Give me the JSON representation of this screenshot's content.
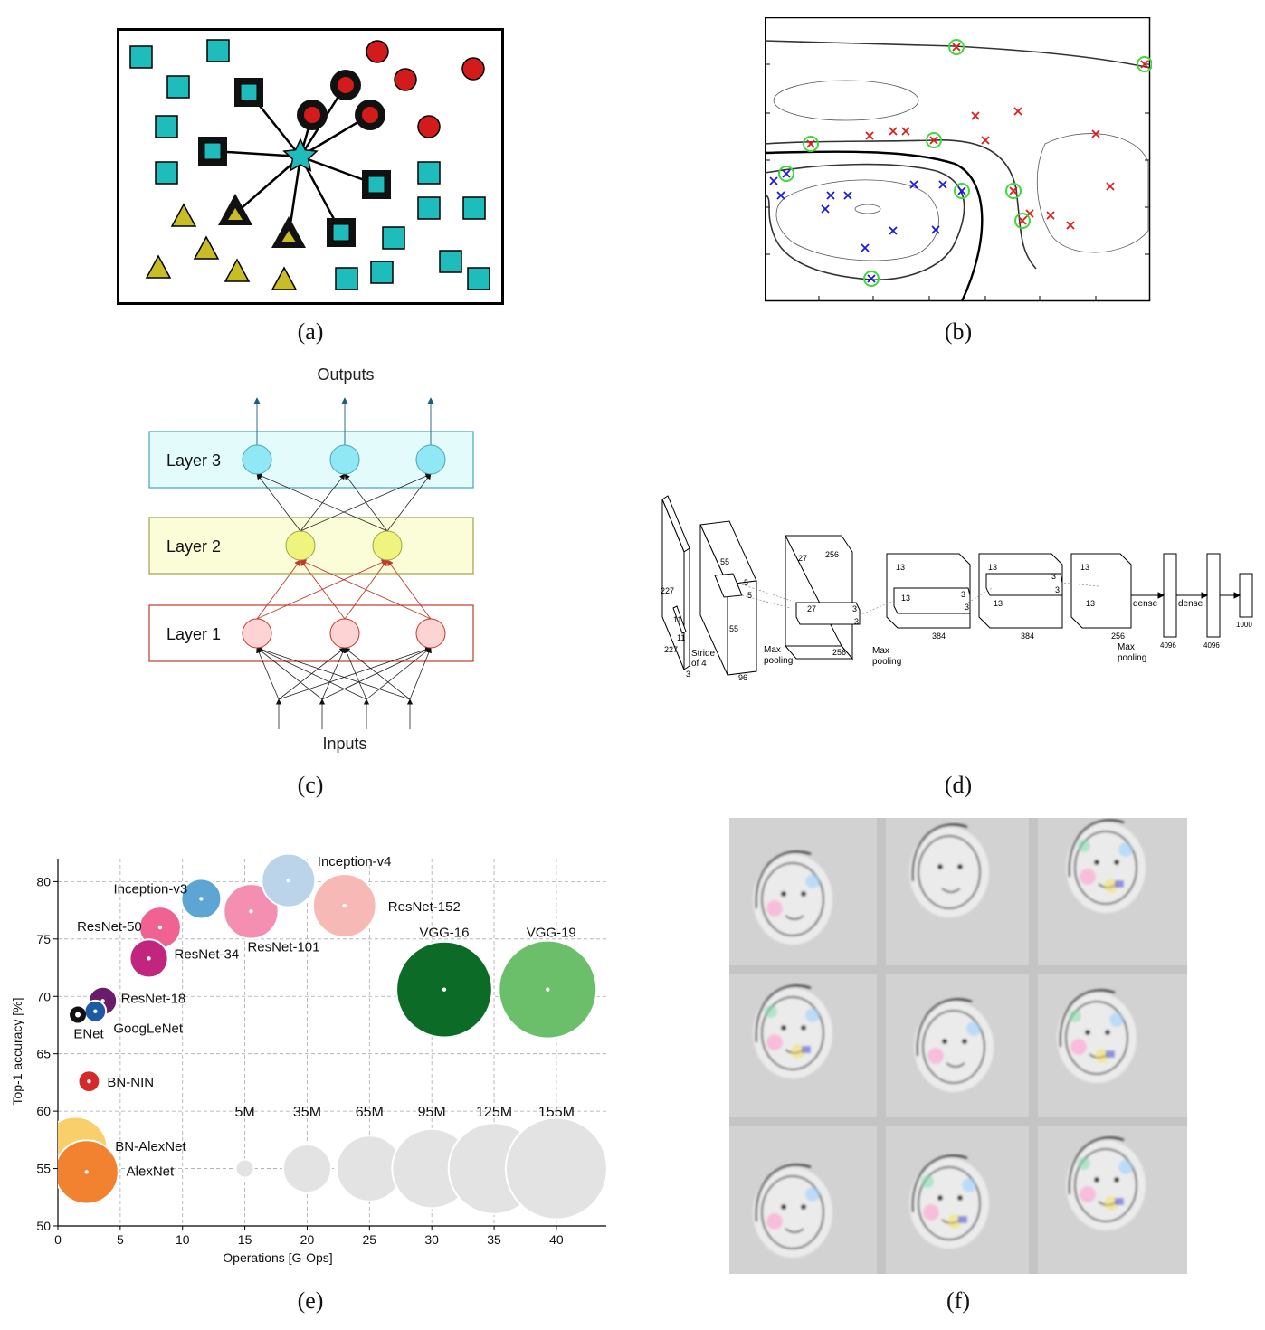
{
  "captions": {
    "a": "(a)",
    "b": "(b)",
    "c": "(c)",
    "d": "(d)",
    "e": "(e)",
    "f": "(f)"
  },
  "colors": {
    "teal": "#1fbcbc",
    "red": "#d41b1b",
    "olive": "#c8bd24",
    "green_ring": "#3adb3a"
  },
  "panel_a": {
    "description_icons": [
      "square-icon",
      "circle-icon",
      "triangle-icon",
      "star-icon"
    ]
  },
  "panel_c": {
    "outputs": "Outputs",
    "inputs": "Inputs",
    "layers": [
      {
        "label": "Layer 3",
        "fill": "#e4fbfc",
        "stroke": "#4aa3b6",
        "node": "#8fe8f4"
      },
      {
        "label": "Layer 2",
        "fill": "#fbfcd8",
        "stroke": "#a2a04a",
        "node": "#eef47e"
      },
      {
        "label": "Layer 1",
        "fill": "#fff",
        "stroke": "#c0392b",
        "node": "#fdd3d3"
      }
    ]
  },
  "panel_d": {
    "labels": {
      "in_h": "227",
      "in_w": "227",
      "in_d": "3",
      "k1": "11",
      "k1b": "11",
      "stride": "Stride",
      "stride2": "of 4",
      "c1a": "55",
      "c1b": "55",
      "c1d": "96",
      "c1k": "5",
      "c1k2": "5",
      "mp1": "Max",
      "mp1b": "pooling",
      "c2a": "27",
      "c2d": "256",
      "c2b": "27",
      "c2k": "3",
      "c2k2": "3",
      "c2e": "256",
      "mp2": "Max",
      "mp2b": "pooling",
      "c3a": "13",
      "c3b": "13",
      "c3k": "3",
      "c3k2": "3",
      "c3d": "384",
      "c4a": "13",
      "c4b": "13",
      "c4k": "3",
      "c4k2": "3",
      "c4d": "384",
      "c5a": "13",
      "c5b": "13",
      "c5d": "256",
      "mp3": "Max",
      "mp3b": "pooling",
      "dense1": "dense",
      "dense2": "dense",
      "f1": "4096",
      "f2": "4096",
      "f3": "1000"
    }
  },
  "chart_data": {
    "type": "scatter",
    "xlabel": "Operations [G-Ops]",
    "ylabel": "Top-1 accuracy [%]",
    "xlim": [
      0,
      44
    ],
    "ylim": [
      50,
      82
    ],
    "xticks": [
      0,
      5,
      10,
      15,
      20,
      25,
      30,
      35,
      40
    ],
    "yticks": [
      50,
      55,
      60,
      65,
      70,
      75,
      80
    ],
    "grid": true,
    "points": [
      {
        "name": "Inception-v4",
        "x": 18.5,
        "y": 80.1,
        "params_M": 43,
        "color": "#bcd4ea"
      },
      {
        "name": "Inception-v3",
        "x": 11.5,
        "y": 78.5,
        "params_M": 24,
        "color": "#5da6d4"
      },
      {
        "name": "ResNet-152",
        "x": 23,
        "y": 77.9,
        "params_M": 60,
        "color": "#f7b9b6"
      },
      {
        "name": "ResNet-101",
        "x": 15.5,
        "y": 77.4,
        "params_M": 45,
        "color": "#f48fb1"
      },
      {
        "name": "ResNet-50",
        "x": 8.2,
        "y": 76.0,
        "params_M": 26,
        "color": "#f06292"
      },
      {
        "name": "ResNet-34",
        "x": 7.3,
        "y": 73.3,
        "params_M": 22,
        "color": "#c2257e"
      },
      {
        "name": "VGG-16",
        "x": 31,
        "y": 70.6,
        "params_M": 138,
        "color": "#0b6b27"
      },
      {
        "name": "VGG-19",
        "x": 39.3,
        "y": 70.6,
        "params_M": 144,
        "color": "#6bbf6b"
      },
      {
        "name": "ResNet-18",
        "x": 3.6,
        "y": 69.6,
        "params_M": 12,
        "color": "#6a1b6a"
      },
      {
        "name": "GoogLeNet",
        "x": 3.0,
        "y": 68.7,
        "params_M": 7,
        "color": "#1c5aa5"
      },
      {
        "name": "ENet",
        "x": 1.6,
        "y": 68.4,
        "params_M": 0.4,
        "color": "#111111"
      },
      {
        "name": "BN-NIN",
        "x": 2.5,
        "y": 62.6,
        "params_M": 7,
        "color": "#d42a2a"
      },
      {
        "name": "BN-AlexNet",
        "x": 1.4,
        "y": 56.7,
        "params_M": 62,
        "color": "#f8cf6a"
      },
      {
        "name": "AlexNet",
        "x": 2.3,
        "y": 54.7,
        "params_M": 61,
        "color": "#f2822f"
      }
    ],
    "size_legend": [
      {
        "label": "5M",
        "x": 15,
        "size": 5
      },
      {
        "label": "35M",
        "x": 20,
        "size": 35
      },
      {
        "label": "65M",
        "x": 25,
        "size": 65
      },
      {
        "label": "95M",
        "x": 30,
        "size": 95
      },
      {
        "label": "125M",
        "x": 35,
        "size": 125
      },
      {
        "label": "155M",
        "x": 40,
        "size": 155
      }
    ],
    "size_legend_y": 55
  },
  "panel_f": {
    "description_icons": [
      "face-filter-grid"
    ]
  }
}
